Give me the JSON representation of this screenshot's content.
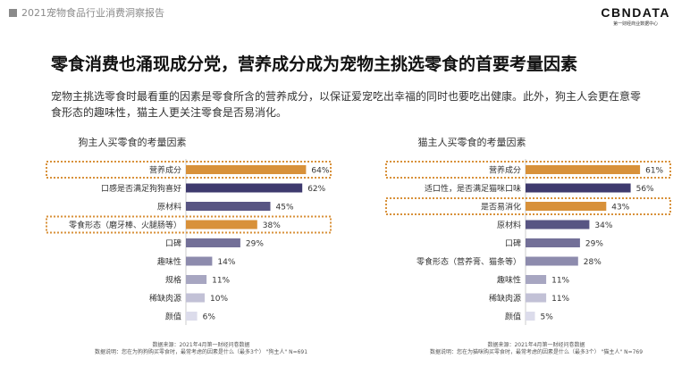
{
  "header": {
    "report_title": "2021宠物食品行业消费洞察报告",
    "logo_text": "CBNDATA",
    "logo_subtext": "第一财经商业数据中心"
  },
  "headline": "零食消费也涌现成分党，营养成分成为宠物主挑选零食的首要考量因素",
  "description": "宠物主挑选零食时最看重的因素是零食所含的营养成分，以保证爱宠吃出幸福的同时也要吃出健康。此外，狗主人会更在意零食形态的趣味性，猫主人更关注零食是否易消化。",
  "colors": {
    "highlight_bar": "#D8913A",
    "normal_bar_dark": "#3E3A6E",
    "normal_bar_light": "#DCDCEB",
    "highlight_frame": "#D8913A"
  },
  "chart_data": [
    {
      "type": "bar",
      "orientation": "horizontal",
      "title": "狗主人买零食的考量因素",
      "categories": [
        "营养成分",
        "口感是否满足狗狗喜好",
        "原材料",
        "零食形态（磨牙棒、火腿肠等）",
        "口碑",
        "趣味性",
        "规格",
        "稀缺肉源",
        "颜值"
      ],
      "values": [
        64,
        62,
        45,
        38,
        29,
        14,
        11,
        10,
        6
      ],
      "value_labels": [
        "64%",
        "62%",
        "45%",
        "38%",
        "29%",
        "14%",
        "11%",
        "10%",
        "6%"
      ],
      "highlighted": [
        "营养成分",
        "零食形态（磨牙棒、火腿肠等）"
      ],
      "xlim": [
        0,
        100
      ],
      "source_line1": "数据来源：2021年4月第一财经问卷数据",
      "source_line2": "数据说明：您在为狗狗购买零食时，最常考虑的因素是什么（最多3个）   \"狗主人\" N=691"
    },
    {
      "type": "bar",
      "orientation": "horizontal",
      "title": "猫主人买零食的考量因素",
      "categories": [
        "营养成分",
        "适口性，是否满足猫咪口味",
        "是否易消化",
        "原材料",
        "口碑",
        "零食形态（营养膏、猫条等）",
        "趣味性",
        "稀缺肉源",
        "颜值"
      ],
      "values": [
        61,
        56,
        43,
        34,
        29,
        28,
        11,
        11,
        5
      ],
      "value_labels": [
        "61%",
        "56%",
        "43%",
        "34%",
        "29%",
        "28%",
        "11%",
        "11%",
        "5%"
      ],
      "highlighted": [
        "营养成分",
        "是否易消化"
      ],
      "xlim": [
        0,
        100
      ],
      "source_line1": "数据来源：2021年4月第一财经问卷数据",
      "source_line2": "数据说明：您在为猫咪购买零食时，最常考虑的因素是什么（最多3个）   \"猫主人\" N=769"
    }
  ]
}
